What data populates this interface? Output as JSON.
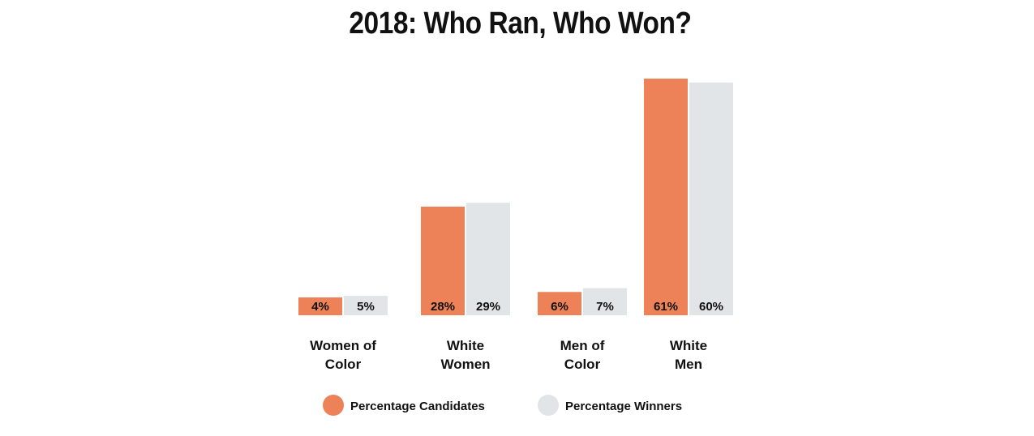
{
  "chart_data": {
    "type": "bar",
    "title": "2018: Who Ran, Who Won?",
    "categories": [
      [
        "Women of",
        "Color"
      ],
      [
        "White",
        "Women"
      ],
      [
        "Men of",
        "Color"
      ],
      [
        "White",
        "Men"
      ]
    ],
    "series": [
      {
        "name": "Percentage Candidates",
        "color": "#ed8157",
        "values": [
          4,
          28,
          6,
          61
        ],
        "labels": [
          "4%",
          "28%",
          "6%",
          "61%"
        ]
      },
      {
        "name": "Percentage Winners",
        "color": "#e2e5e7",
        "values": [
          5,
          29,
          7,
          60
        ],
        "labels": [
          "5%",
          "29%",
          "7%",
          "60%"
        ]
      }
    ],
    "ylim": [
      0,
      61
    ],
    "grid": false,
    "legend_position": "bottom"
  }
}
